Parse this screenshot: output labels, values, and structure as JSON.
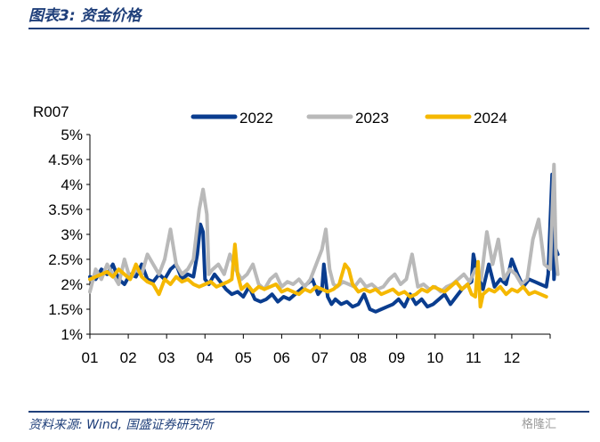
{
  "figure_title": "图表3:  资金价格",
  "source_note": "资料来源:  Wind, 国盛证券研究所",
  "watermark": "格隆汇",
  "chart_data": {
    "type": "line",
    "ylabel": "R007",
    "ylim": [
      1,
      5
    ],
    "yticks": [
      "1%",
      "1.5%",
      "2%",
      "2.5%",
      "3%",
      "3.5%",
      "4%",
      "4.5%",
      "5%"
    ],
    "xticks": [
      "01",
      "02",
      "03",
      "04",
      "05",
      "06",
      "07",
      "08",
      "09",
      "10",
      "11",
      "12"
    ],
    "xlim": [
      0,
      12
    ],
    "grid": false,
    "legend_position": "top",
    "series": [
      {
        "name": "2022",
        "color": "#0a3d8f",
        "x": [
          0.0,
          0.15,
          0.3,
          0.45,
          0.6,
          0.75,
          0.9,
          1.05,
          1.2,
          1.35,
          1.5,
          1.65,
          1.8,
          1.95,
          2.1,
          2.25,
          2.4,
          2.55,
          2.7,
          2.8,
          2.88,
          2.95,
          3.0,
          3.1,
          3.25,
          3.4,
          3.55,
          3.7,
          3.85,
          4.0,
          4.15,
          4.3,
          4.45,
          4.6,
          4.75,
          4.9,
          5.05,
          5.2,
          5.35,
          5.5,
          5.65,
          5.8,
          5.95,
          6.05,
          6.1,
          6.2,
          6.3,
          6.4,
          6.55,
          6.7,
          6.85,
          7.0,
          7.15,
          7.3,
          7.45,
          7.6,
          7.75,
          7.9,
          8.05,
          8.2,
          8.35,
          8.5,
          8.65,
          8.8,
          8.95,
          9.1,
          9.25,
          9.4,
          9.55,
          9.7,
          9.85,
          9.95,
          10.0,
          10.1,
          10.25,
          10.4,
          10.55,
          10.7,
          10.85,
          11.0,
          11.15,
          11.3,
          11.45,
          11.6,
          11.75,
          11.9,
          11.95,
          12.0,
          12.05,
          12.1,
          12.15,
          12.2
        ],
        "values": [
          2.15,
          2.1,
          2.3,
          2.2,
          2.4,
          2.1,
          2.0,
          2.2,
          2.15,
          2.4,
          2.1,
          2.05,
          2.2,
          2.1,
          2.3,
          2.4,
          2.1,
          2.2,
          2.15,
          2.6,
          3.2,
          3.05,
          2.1,
          2.0,
          2.2,
          2.05,
          1.9,
          1.8,
          1.85,
          1.75,
          1.95,
          1.7,
          1.65,
          1.7,
          1.8,
          1.65,
          1.75,
          1.7,
          1.8,
          1.9,
          2.0,
          2.1,
          1.8,
          1.9,
          2.4,
          1.75,
          1.6,
          1.7,
          1.6,
          1.65,
          1.55,
          1.6,
          1.8,
          1.5,
          1.45,
          1.5,
          1.55,
          1.6,
          1.7,
          1.55,
          1.8,
          1.6,
          1.7,
          1.55,
          1.6,
          1.7,
          1.8,
          1.6,
          1.75,
          1.9,
          2.0,
          2.05,
          2.6,
          2.2,
          1.9,
          2.4,
          1.95,
          2.1,
          2.0,
          2.5,
          2.2,
          1.95,
          2.1,
          2.05,
          2.0,
          1.95,
          2.2,
          3.2,
          4.2,
          2.1,
          2.7,
          2.6
        ]
      },
      {
        "name": "2023",
        "color": "#b9b9b9",
        "x": [
          0.0,
          0.15,
          0.3,
          0.45,
          0.6,
          0.75,
          0.9,
          1.05,
          1.2,
          1.35,
          1.5,
          1.65,
          1.8,
          1.95,
          2.1,
          2.25,
          2.4,
          2.55,
          2.7,
          2.85,
          2.95,
          3.05,
          3.1,
          3.2,
          3.35,
          3.5,
          3.65,
          3.8,
          3.95,
          4.1,
          4.25,
          4.4,
          4.55,
          4.7,
          4.85,
          5.0,
          5.15,
          5.3,
          5.45,
          5.6,
          5.75,
          5.9,
          6.05,
          6.15,
          6.25,
          6.35,
          6.45,
          6.6,
          6.75,
          6.9,
          7.05,
          7.2,
          7.35,
          7.5,
          7.65,
          7.8,
          7.95,
          8.1,
          8.25,
          8.4,
          8.55,
          8.7,
          8.85,
          9.0,
          9.15,
          9.3,
          9.45,
          9.6,
          9.75,
          9.9,
          10.05,
          10.2,
          10.35,
          10.5,
          10.65,
          10.8,
          10.95,
          11.1,
          11.25,
          11.4,
          11.55,
          11.7,
          11.85,
          12.0,
          12.1,
          12.15,
          12.2
        ],
        "values": [
          1.85,
          2.3,
          2.1,
          2.4,
          2.2,
          2.0,
          2.5,
          2.1,
          2.3,
          2.2,
          2.6,
          2.4,
          2.2,
          2.5,
          3.1,
          2.4,
          2.2,
          2.3,
          2.5,
          3.5,
          3.9,
          3.4,
          2.2,
          2.3,
          2.4,
          2.2,
          2.6,
          2.3,
          2.1,
          2.2,
          2.4,
          2.0,
          1.9,
          2.1,
          2.2,
          1.95,
          2.05,
          2.0,
          2.1,
          1.95,
          2.1,
          2.4,
          2.7,
          3.1,
          2.3,
          2.0,
          1.95,
          2.05,
          2.0,
          1.95,
          2.1,
          1.95,
          2.0,
          1.9,
          1.95,
          2.1,
          2.2,
          2.0,
          2.1,
          2.6,
          1.95,
          2.0,
          1.9,
          1.95,
          1.85,
          1.95,
          2.0,
          2.1,
          2.2,
          2.05,
          2.3,
          2.1,
          3.05,
          2.4,
          2.9,
          2.1,
          2.3,
          2.2,
          2.0,
          2.1,
          2.9,
          3.3,
          2.4,
          2.3,
          4.4,
          2.6,
          2.2
        ]
      },
      {
        "name": "2024",
        "color": "#f5b800",
        "x": [
          0.0,
          0.15,
          0.3,
          0.45,
          0.6,
          0.75,
          0.9,
          1.05,
          1.2,
          1.35,
          1.5,
          1.65,
          1.8,
          1.95,
          2.1,
          2.25,
          2.4,
          2.55,
          2.7,
          2.85,
          3.0,
          3.15,
          3.3,
          3.45,
          3.6,
          3.7,
          3.78,
          3.85,
          3.95,
          4.1,
          4.25,
          4.4,
          4.55,
          4.7,
          4.85,
          5.0,
          5.15,
          5.3,
          5.45,
          5.6,
          5.75,
          5.9,
          6.05,
          6.2,
          6.35,
          6.5,
          6.65,
          6.75,
          6.85,
          7.0,
          7.15,
          7.3,
          7.45,
          7.6,
          7.75,
          7.9,
          8.05,
          8.2,
          8.35,
          8.5,
          8.65,
          8.8,
          8.95,
          9.1,
          9.25,
          9.4,
          9.55,
          9.7,
          9.85,
          9.95,
          10.05,
          10.12,
          10.18,
          10.25,
          10.4,
          10.55,
          10.7,
          10.85,
          11.0,
          11.15,
          11.3,
          11.45,
          11.6,
          11.75,
          11.9
        ],
        "values": [
          2.1,
          2.15,
          2.2,
          2.25,
          2.15,
          2.3,
          2.2,
          2.1,
          2.4,
          2.15,
          2.05,
          2.0,
          1.8,
          2.1,
          2.0,
          2.15,
          2.05,
          2.1,
          2.0,
          1.95,
          2.0,
          2.05,
          1.95,
          2.0,
          2.05,
          2.1,
          2.8,
          2.2,
          1.9,
          2.0,
          1.85,
          1.95,
          1.9,
          1.95,
          2.0,
          1.85,
          1.9,
          1.85,
          1.8,
          1.9,
          1.85,
          1.95,
          1.9,
          1.85,
          1.9,
          2.0,
          2.4,
          2.3,
          2.0,
          1.85,
          1.9,
          1.85,
          1.9,
          1.8,
          1.85,
          1.9,
          1.8,
          1.85,
          1.75,
          1.8,
          1.9,
          1.85,
          1.95,
          1.9,
          1.85,
          1.95,
          2.05,
          1.9,
          2.0,
          1.8,
          1.75,
          2.45,
          1.55,
          1.8,
          1.9,
          1.85,
          1.95,
          1.8,
          1.9,
          1.85,
          1.95,
          1.8,
          1.85,
          1.8,
          1.75
        ]
      }
    ]
  }
}
